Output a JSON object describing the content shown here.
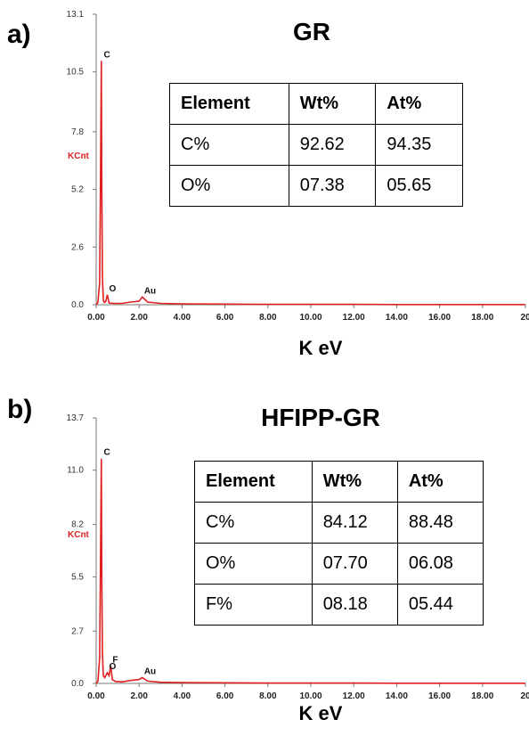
{
  "chart_data": [
    {
      "type": "line",
      "panel_label": "a)",
      "title": "GR",
      "xlabel": "K eV",
      "ylabel": "KCnt",
      "x_ticks": [
        "0.00",
        "2.00",
        "4.00",
        "6.00",
        "8.00",
        "10.00",
        "12.00",
        "14.00",
        "16.00",
        "18.00",
        "20"
      ],
      "y_ticks": [
        "0.0",
        "2.6",
        "5.2",
        "7.8",
        "10.5",
        "13.1"
      ],
      "xlim": [
        0,
        20
      ],
      "ylim": [
        0,
        13.1
      ],
      "series": [
        {
          "x": [
            0.0,
            0.08,
            0.16,
            0.2,
            0.24,
            0.26,
            0.29,
            0.33,
            0.38,
            0.45,
            0.52,
            0.6,
            0.8,
            1.2,
            1.6,
            2.0,
            2.15,
            2.4,
            3.0,
            4.0,
            6.0,
            8.0,
            10.0,
            12.0,
            14.0,
            16.0,
            18.0,
            20.0
          ],
          "y": [
            0.0,
            0.1,
            1.0,
            5.5,
            11.0,
            5.2,
            1.3,
            0.2,
            0.1,
            0.15,
            0.45,
            0.08,
            0.06,
            0.06,
            0.12,
            0.16,
            0.35,
            0.12,
            0.06,
            0.04,
            0.03,
            0.02,
            0.02,
            0.02,
            0.01,
            0.01,
            0.01,
            0.01
          ]
        }
      ],
      "peak_labels": [
        {
          "text": "C",
          "x": 0.27,
          "y": 11.0
        },
        {
          "text": "O",
          "x": 0.52,
          "y": 0.45
        },
        {
          "text": "Au",
          "x": 2.15,
          "y": 0.35
        }
      ],
      "table": {
        "headers": [
          "Element",
          "Wt%",
          "At%"
        ],
        "rows": [
          [
            "C%",
            "92.62",
            "94.35"
          ],
          [
            "O%",
            "07.38",
            "05.65"
          ]
        ]
      },
      "color": "#e0201e"
    },
    {
      "type": "line",
      "panel_label": "b)",
      "title": "HFIPP-GR",
      "xlabel": "K eV",
      "ylabel": "KCnt",
      "x_ticks": [
        "0.00",
        "2.00",
        "4.00",
        "6.00",
        "8.00",
        "10.00",
        "12.00",
        "14.00",
        "16.00",
        "18.00",
        "20"
      ],
      "y_ticks": [
        "0.0",
        "2.7",
        "5.5",
        "8.2",
        "11.0",
        "13.7"
      ],
      "xlim": [
        0,
        20
      ],
      "ylim": [
        0,
        13.7
      ],
      "series": [
        {
          "x": [
            0.0,
            0.08,
            0.16,
            0.2,
            0.24,
            0.26,
            0.29,
            0.33,
            0.4,
            0.52,
            0.6,
            0.68,
            0.75,
            0.9,
            1.2,
            1.6,
            2.0,
            2.15,
            2.4,
            3.0,
            4.0,
            6.0,
            8.0,
            10.0,
            12.0,
            14.0,
            16.0,
            18.0,
            20.0
          ],
          "y": [
            0.0,
            0.1,
            1.3,
            6.2,
            11.6,
            5.4,
            1.6,
            0.4,
            0.3,
            0.55,
            0.4,
            0.9,
            0.2,
            0.1,
            0.08,
            0.15,
            0.2,
            0.3,
            0.12,
            0.06,
            0.04,
            0.03,
            0.02,
            0.02,
            0.02,
            0.01,
            0.01,
            0.01,
            0.01
          ]
        }
      ],
      "peak_labels": [
        {
          "text": "C",
          "x": 0.27,
          "y": 11.6
        },
        {
          "text": "O",
          "x": 0.52,
          "y": 0.55
        },
        {
          "text": "F",
          "x": 0.68,
          "y": 0.9
        },
        {
          "text": "Au",
          "x": 2.15,
          "y": 0.3
        }
      ],
      "table": {
        "headers": [
          "Element",
          "Wt%",
          "At%"
        ],
        "rows": [
          [
            "C%",
            "84.12",
            "88.48"
          ],
          [
            "O%",
            "07.70",
            "06.08"
          ],
          [
            "F%",
            "08.18",
            "05.44"
          ]
        ]
      },
      "color": "#e0201e"
    }
  ]
}
